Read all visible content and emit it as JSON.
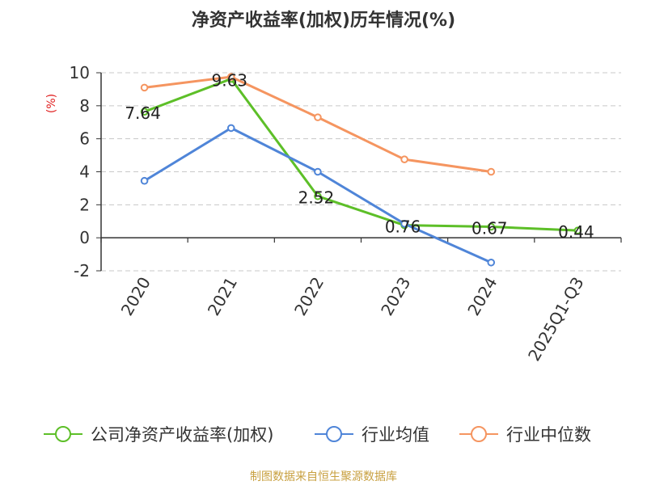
{
  "chart_data": {
    "type": "line",
    "title": "净资产收益率(加权)历年情况(%)",
    "ylabel": "(%)",
    "categories": [
      "2020",
      "2021",
      "2022",
      "2023",
      "2024",
      "2025Q1-Q3"
    ],
    "ylim": [
      -2,
      10
    ],
    "yticks": [
      -2,
      0,
      2,
      4,
      6,
      8,
      10
    ],
    "grid": true,
    "legend_position": "bottom",
    "series": [
      {
        "name": "公司净资产收益率(加权)",
        "color": "#5dbf28",
        "values": [
          7.64,
          9.63,
          2.52,
          0.76,
          0.67,
          0.44
        ],
        "labels": [
          "7.64",
          "9.63",
          "2.52",
          "0.76",
          "0.67",
          "0.44"
        ]
      },
      {
        "name": "行业均值",
        "color": "#4f85d8",
        "values": [
          3.45,
          6.65,
          4.0,
          0.85,
          -1.5,
          null
        ]
      },
      {
        "name": "行业中位数",
        "color": "#f59560",
        "values": [
          9.1,
          9.75,
          7.3,
          4.75,
          4.0,
          null
        ]
      }
    ],
    "source": "制图数据来自恒生聚源数据库"
  }
}
